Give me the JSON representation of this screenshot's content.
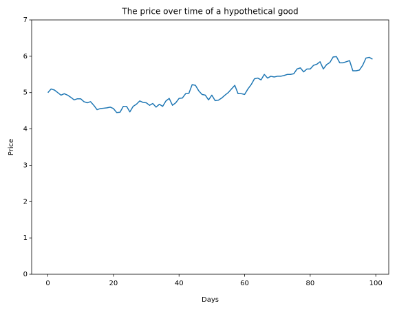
{
  "chart_data": {
    "type": "line",
    "title": "The price over time of a hypothetical good",
    "xlabel": "Days",
    "ylabel": "Price",
    "x": [
      0,
      1,
      2,
      3,
      4,
      5,
      6,
      7,
      8,
      9,
      10,
      11,
      12,
      13,
      14,
      15,
      16,
      17,
      18,
      19,
      20,
      21,
      22,
      23,
      24,
      25,
      26,
      27,
      28,
      29,
      30,
      31,
      32,
      33,
      34,
      35,
      36,
      37,
      38,
      39,
      40,
      41,
      42,
      43,
      44,
      45,
      46,
      47,
      48,
      49,
      50,
      51,
      52,
      53,
      54,
      55,
      56,
      57,
      58,
      59,
      60,
      61,
      62,
      63,
      64,
      65,
      66,
      67,
      68,
      69,
      70,
      71,
      72,
      73,
      74,
      75,
      76,
      77,
      78,
      79,
      80,
      81,
      82,
      83,
      84,
      85,
      86,
      87,
      88,
      89,
      90,
      91,
      92,
      93,
      94,
      95,
      96,
      97,
      98,
      99
    ],
    "series": [
      {
        "name": "Price",
        "color": "#1f77b4",
        "values": [
          5.0,
          5.1,
          5.07,
          5.0,
          4.93,
          4.97,
          4.93,
          4.87,
          4.8,
          4.83,
          4.83,
          4.75,
          4.72,
          4.75,
          4.65,
          4.53,
          4.56,
          4.57,
          4.58,
          4.6,
          4.56,
          4.45,
          4.46,
          4.62,
          4.62,
          4.47,
          4.62,
          4.68,
          4.77,
          4.73,
          4.72,
          4.65,
          4.7,
          4.6,
          4.68,
          4.62,
          4.77,
          4.84,
          4.65,
          4.72,
          4.84,
          4.85,
          4.97,
          4.98,
          5.22,
          5.2,
          5.05,
          4.95,
          4.93,
          4.8,
          4.93,
          4.78,
          4.79,
          4.85,
          4.93,
          5.0,
          5.1,
          5.2,
          4.97,
          4.97,
          4.95,
          5.1,
          5.22,
          5.38,
          5.4,
          5.35,
          5.5,
          5.4,
          5.45,
          5.43,
          5.45,
          5.45,
          5.47,
          5.5,
          5.5,
          5.52,
          5.65,
          5.68,
          5.57,
          5.65,
          5.65,
          5.75,
          5.78,
          5.85,
          5.65,
          5.77,
          5.83,
          5.98,
          5.99,
          5.82,
          5.82,
          5.85,
          5.88,
          5.6,
          5.6,
          5.62,
          5.75,
          5.95,
          5.97,
          5.92
        ]
      }
    ],
    "xlim": [
      -4.95,
      103.95
    ],
    "ylim": [
      0,
      7
    ],
    "xticks": [
      0,
      20,
      40,
      60,
      80,
      100
    ],
    "yticks": [
      0,
      1,
      2,
      3,
      4,
      5,
      6,
      7
    ],
    "grid": false
  }
}
